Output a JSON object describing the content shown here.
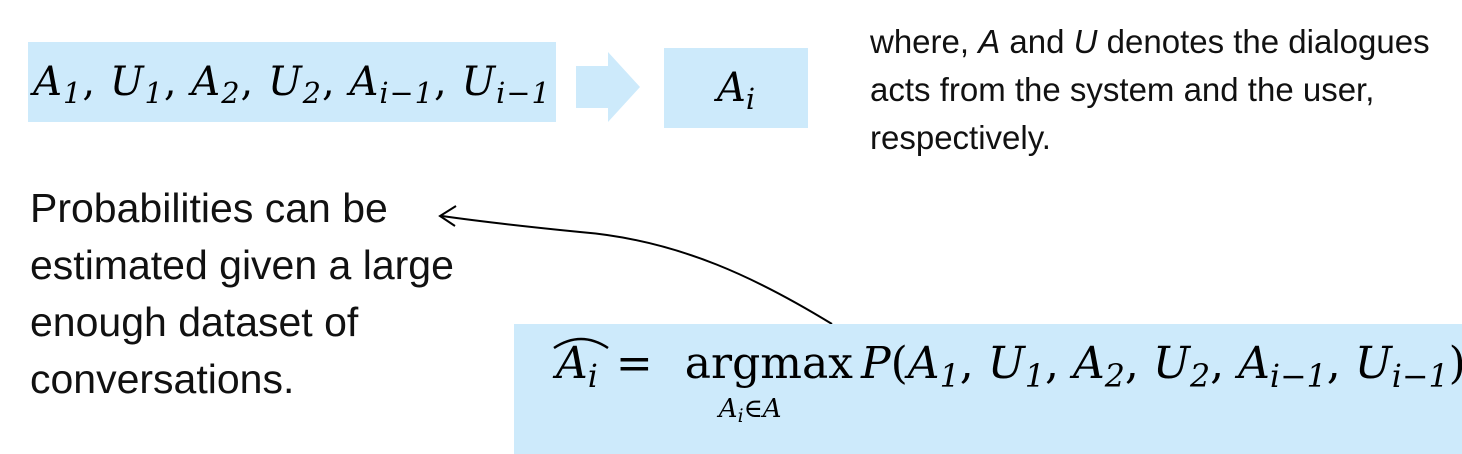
{
  "top_sequence": {
    "terms": [
      {
        "base": "A",
        "sub": "1"
      },
      {
        "base": "U",
        "sub": "1"
      },
      {
        "base": "A",
        "sub": "2"
      },
      {
        "base": "U",
        "sub": "2"
      },
      {
        "base": "A",
        "sub": "i−1"
      },
      {
        "base": "U",
        "sub": "i−1"
      }
    ],
    "separator": ", "
  },
  "target": {
    "base": "A",
    "sub": "i"
  },
  "note": {
    "prefix": "where, ",
    "var_a": "A",
    "and_word": " and ",
    "var_u": "U",
    "suffix": " denotes the dialogues acts from the system and the user, respectively."
  },
  "probability_text": "Probabilities can be estimated given a large enough dataset of conversations.",
  "equation": {
    "lhs_base": "A",
    "lhs_sub": "i",
    "equals": "=",
    "operator": "argmax",
    "operator_sub": "A",
    "operator_sub_index": "i",
    "operator_sub_rest": "∈A",
    "function": "P",
    "open_paren": "(",
    "args": [
      {
        "base": "A",
        "sub": "1"
      },
      {
        "base": "U",
        "sub": "1"
      },
      {
        "base": "A",
        "sub": "2"
      },
      {
        "base": "U",
        "sub": "2"
      },
      {
        "base": "A",
        "sub": "i−1"
      },
      {
        "base": "U",
        "sub": "i−1"
      }
    ],
    "close_paren": ")"
  },
  "colors": {
    "box_fill": "#cdeafb",
    "arrow_fill": "#cdeafb",
    "text": "#111111"
  }
}
